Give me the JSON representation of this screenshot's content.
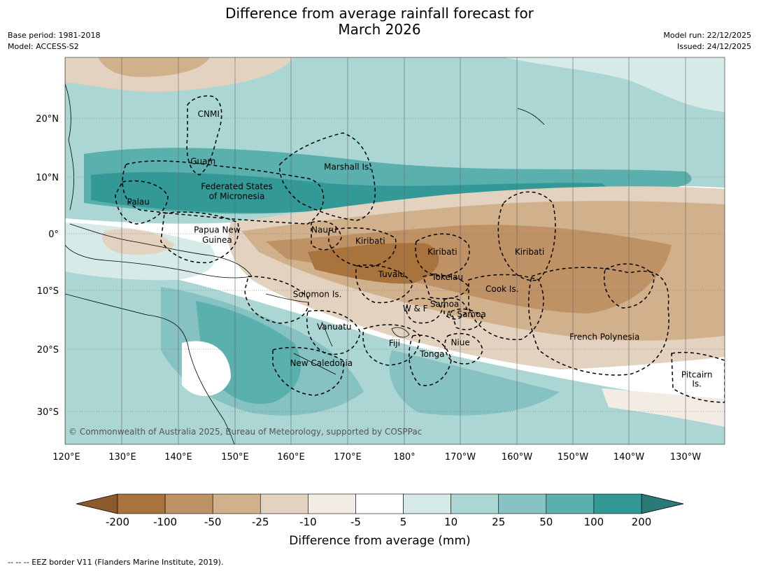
{
  "title": {
    "line1": "Difference from average rainfall forecast for",
    "line2": "March 2026"
  },
  "meta": {
    "base_period": "Base period: 1981-2018",
    "model": "Model: ACCESS-S2",
    "model_run": "Model run: 22/12/2025",
    "issued": "Issued: 24/12/2025"
  },
  "axes": {
    "lat_labels": [
      "20°N",
      "10°N",
      "0°",
      "10°S",
      "20°S",
      "30°S"
    ],
    "lon_labels": [
      "120°E",
      "130°E",
      "140°E",
      "150°E",
      "160°E",
      "170°E",
      "180°",
      "170°W",
      "160°W",
      "150°W",
      "140°W",
      "130°W"
    ]
  },
  "regions": [
    {
      "name": "CNMI",
      "lon": 145.5,
      "lat": 20.5
    },
    {
      "name": "Guam",
      "lon": 144.5,
      "lat": 12.2
    },
    {
      "name": "Marshall Is.",
      "lon": 170.2,
      "lat": 11.2
    },
    {
      "name": "Federated States",
      "lon": 150.5,
      "lat": 7.8
    },
    {
      "name": "of Micronesia",
      "lon": 150.5,
      "lat": 6.1
    },
    {
      "name": "Palau",
      "lon": 133,
      "lat": 5.1
    },
    {
      "name": "Papua New",
      "lon": 147,
      "lat": 0.2
    },
    {
      "name": "Guinea",
      "lon": 147,
      "lat": -1.6
    },
    {
      "name": "Nauru",
      "lon": 166,
      "lat": 0.2
    },
    {
      "name": "Kiribati",
      "lon": 174.2,
      "lat": -1.8
    },
    {
      "name": "Kiribati",
      "lon": -173,
      "lat": -3.7
    },
    {
      "name": "Kiribati",
      "lon": -157.5,
      "lat": -3.7
    },
    {
      "name": "Tuvalu",
      "lon": 178,
      "lat": -7.6
    },
    {
      "name": "Tokelau",
      "lon": -172.1,
      "lat": -8.1
    },
    {
      "name": "Cook Is.",
      "lon": -162.4,
      "lat": -10.2
    },
    {
      "name": "Solomon Is.",
      "lon": 164.8,
      "lat": -11.1
    },
    {
      "name": "W & F",
      "lon": -177.8,
      "lat": -13.6
    },
    {
      "name": "Samoa",
      "lon": -172.6,
      "lat": -12.8
    },
    {
      "name": "A. Samoa",
      "lon": -168.8,
      "lat": -14.6
    },
    {
      "name": "Vanuatu",
      "lon": 167.8,
      "lat": -16.8
    },
    {
      "name": "Fiji",
      "lon": 178.5,
      "lat": -19.7
    },
    {
      "name": "Niue",
      "lon": -169.8,
      "lat": -19.6
    },
    {
      "name": "Tonga",
      "lon": -174.8,
      "lat": -21.6
    },
    {
      "name": "French Polynesia",
      "lon": -144.2,
      "lat": -18.6
    },
    {
      "name": "New Caledonia",
      "lon": 165.5,
      "lat": -23.2
    },
    {
      "name": "Pitcairn",
      "lon": -127.8,
      "lat": -25.2
    },
    {
      "name": "Is.",
      "lon": -127.8,
      "lat": -26.8
    }
  ],
  "copyright": "© Commonwealth of Australia 2025, Bureau of Meteorology, supported by COSPPac",
  "colorbar": {
    "title": "Difference from average (mm)",
    "tick_labels": [
      "-200",
      "-100",
      "-50",
      "-25",
      "-10",
      "-5",
      "5",
      "10",
      "25",
      "50",
      "100",
      "200"
    ],
    "colors": [
      "#a8733c",
      "#bf9266",
      "#d1b08c",
      "#e4d2c0",
      "#f2ece4",
      "#ffffff",
      "#d6eae8",
      "#abd6d4",
      "#85c2c1",
      "#5ab0ad",
      "#339996"
    ],
    "extend_low_color": "#8c5a2a",
    "extend_high_color": "#2a7a78"
  },
  "footer": "--  --  -- EEZ border V11 (Flanders Marine Institute, 2019)."
}
